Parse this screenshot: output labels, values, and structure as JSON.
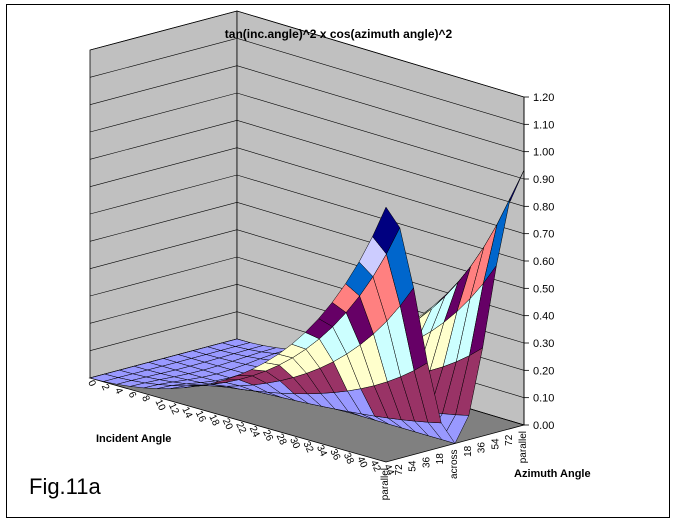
{
  "chart_data": {
    "type": "surface",
    "title": "tan(inc.angle)^2 x cos(azimuth angle)^2",
    "x_label": "Incident Angle",
    "y_label": "Azimuth Angle",
    "annotation": "Fig.11a",
    "incident_angles": [
      0,
      2,
      4,
      6,
      8,
      10,
      12,
      14,
      16,
      18,
      20,
      22,
      24,
      26,
      28,
      30,
      32,
      34,
      36,
      38,
      40,
      42,
      44
    ],
    "azimuth_tick_labels": [
      "parallel",
      "72",
      "54",
      "36",
      "18",
      "across",
      "18",
      "36",
      "54",
      "72",
      "parallel"
    ],
    "azimuth_values_deg": [
      0,
      18,
      36,
      54,
      72,
      90,
      108,
      126,
      144,
      162,
      180
    ],
    "z_ticks": [
      "0.00",
      "0.10",
      "0.20",
      "0.30",
      "0.40",
      "0.50",
      "0.60",
      "0.70",
      "0.80",
      "0.90",
      "1.00",
      "1.10",
      "1.20"
    ],
    "z_range": [
      0,
      1.2
    ],
    "function": "tan(incident)^2 * cos(azimuth)^2",
    "band_colors": [
      "#9999ff",
      "#993366",
      "#ffffcc",
      "#ccffff",
      "#660066",
      "#ff8080",
      "#0066cc",
      "#ccccff",
      "#000080",
      "#ff00ff",
      "#ffff00",
      "#00ffff"
    ],
    "wall_color": "#c0c0c0",
    "floor_color": "#808080",
    "grid": true
  }
}
